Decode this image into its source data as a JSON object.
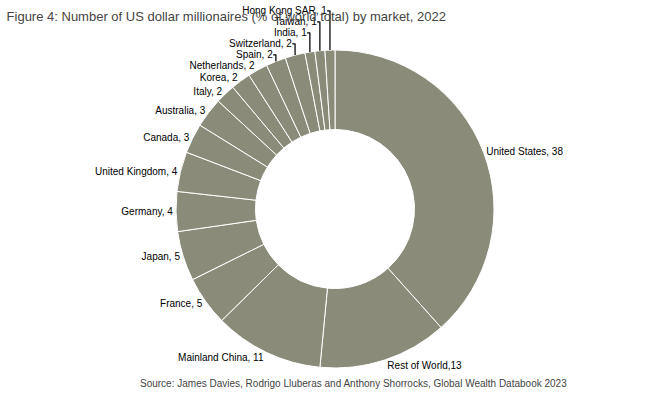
{
  "chart_data": {
    "type": "pie",
    "title": "Figure 4: Number of US dollar millionaires (% of world total) by market, 2022",
    "annotations": [
      {
        "text": "Source: James Davies, Rodrigo Lluberas and Anthony Shorrocks, Global Wealth Databook 2023"
      }
    ],
    "categories": [
      "United States, 38",
      "Rest of World,13",
      "Mainland China, 11",
      "France, 5",
      "Japan, 5",
      "Germany, 4",
      "United Kingdom, 4",
      "Canada, 3",
      "Australia, 3",
      "Italy, 2",
      "Korea, 2",
      "Netherlands, 2",
      "Spain, 2",
      "Switzerland, 2",
      "India, 1",
      "Taiwan, 1",
      "Hong Kong SAR, 1"
    ],
    "values": [
      38,
      13,
      11,
      5,
      5,
      4,
      4,
      3,
      3,
      2,
      2,
      2,
      2,
      2,
      1,
      1,
      1
    ],
    "color": "#8b8b79"
  }
}
